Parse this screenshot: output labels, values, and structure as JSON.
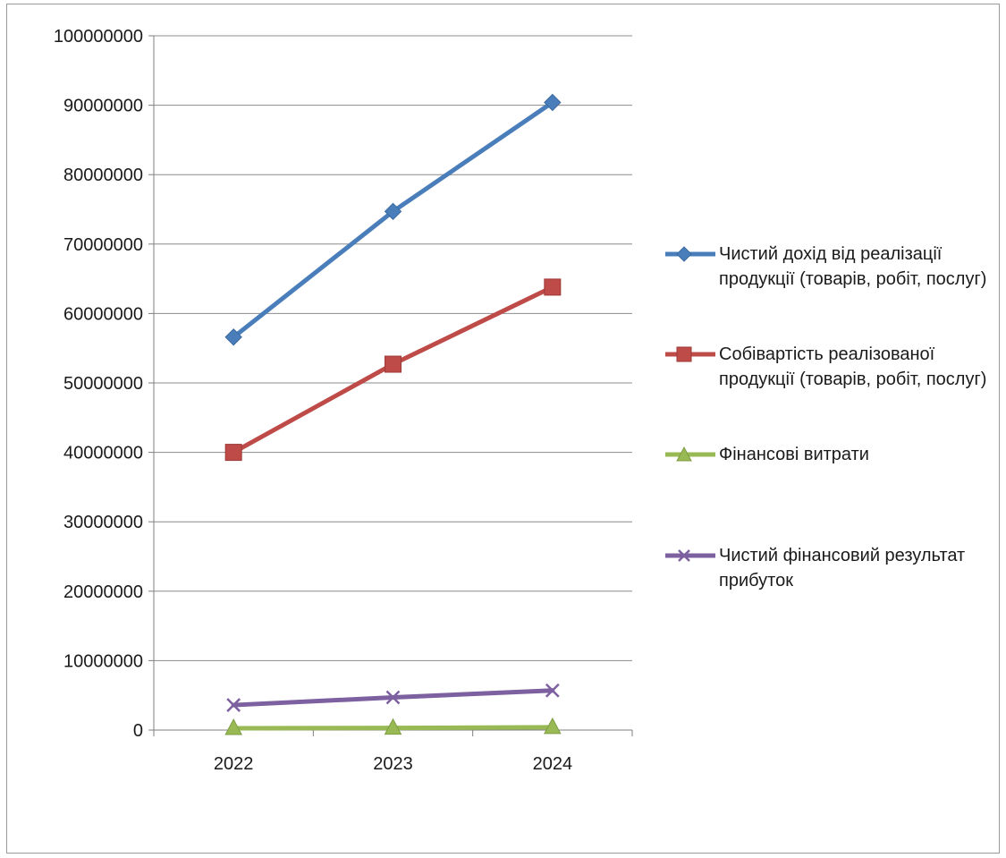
{
  "chart_data": {
    "type": "line",
    "categories": [
      "2022",
      "2023",
      "2024"
    ],
    "ylim": [
      0,
      100000000
    ],
    "yticks": [
      0,
      10000000,
      20000000,
      30000000,
      40000000,
      50000000,
      60000000,
      70000000,
      80000000,
      90000000,
      100000000
    ],
    "grid": true,
    "legend_position": "right",
    "series": [
      {
        "name": "Чистий дохід від реалізації продукції (товарів, робіт, послуг)",
        "values": [
          56600000,
          74700000,
          90400000
        ],
        "color": "#4a7ebb",
        "marker": "diamond"
      },
      {
        "name": "Собівартість реалізованої продукції (товарів, робіт, послуг)",
        "values": [
          40000000,
          52700000,
          63800000
        ],
        "color": "#be4b48",
        "marker": "square"
      },
      {
        "name": "Фінансові витрати",
        "values": [
          250000,
          300000,
          400000
        ],
        "color": "#98b954",
        "marker": "triangle"
      },
      {
        "name": "Чистий фінансовий результат прибуток",
        "values": [
          3600000,
          4700000,
          5700000
        ],
        "color": "#7d60a0",
        "marker": "x"
      }
    ]
  }
}
